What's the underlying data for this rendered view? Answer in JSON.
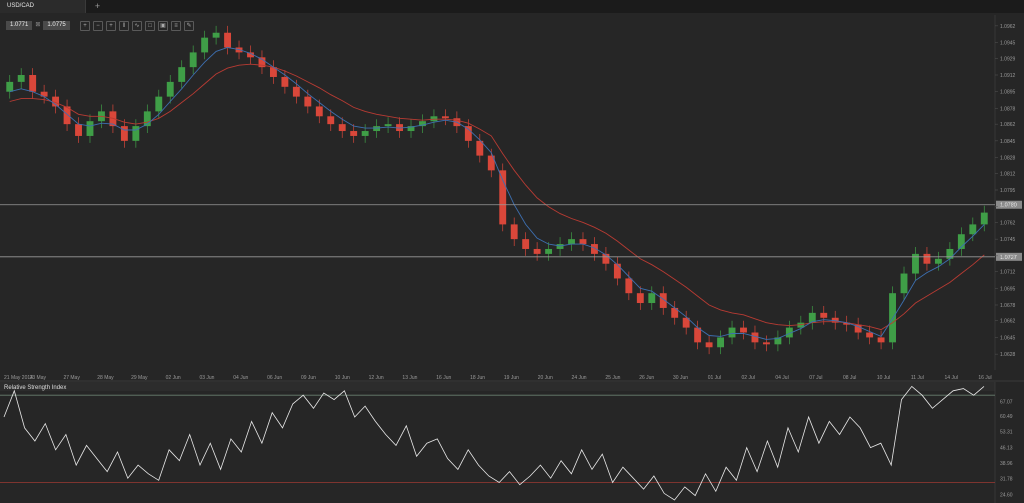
{
  "tab": {
    "symbol": "USD/CAD",
    "add_label": "+"
  },
  "quote": {
    "bid": "1.0771",
    "separator": "⊠",
    "ask": "1.0775"
  },
  "toolbar": {
    "icons": [
      "zoom-in-icon",
      "zoom-out-icon",
      "crosshair-icon",
      "candles-icon",
      "indicators-icon",
      "objects-icon",
      "screenshot-icon",
      "settings-icon",
      "draw-icon"
    ]
  },
  "colors": {
    "background": "#262626",
    "bull": "#3f9e47",
    "bear": "#d9473a",
    "ma_fast": "#3d6fb0",
    "ma_slow": "#b83b33",
    "hline": "#9a9a9a",
    "rsi_line": "#e8e8e8",
    "rsi_upper": "#6a7f70",
    "rsi_lower": "#9d3a33"
  },
  "chart_data": [
    {
      "type": "candlestick",
      "title": "USD/CAD",
      "ylim": [
        1.062,
        1.097
      ],
      "y_ticks": [
        "1.0962",
        "1.0945",
        "1.0929",
        "1.0912",
        "1.0895",
        "1.0878",
        "1.0862",
        "1.0845",
        "1.0828",
        "1.0812",
        "1.0795",
        "1.0778",
        "1.0762",
        "1.0745",
        "1.0728",
        "1.0712",
        "1.0695",
        "1.0678",
        "1.0662",
        "1.0645",
        "1.0628"
      ],
      "x_labels": [
        "21 May 2014",
        "23 May",
        "27 May",
        "28 May",
        "29 May",
        "02 Jun",
        "03 Jun",
        "04 Jun",
        "06 Jun",
        "09 Jun",
        "10 Jun",
        "12 Jun",
        "13 Jun",
        "16 Jun",
        "18 Jun",
        "19 Jun",
        "20 Jun",
        "24 Jun",
        "25 Jun",
        "26 Jun",
        "30 Jun",
        "01 Jul",
        "02 Jul",
        "04 Jul",
        "07 Jul",
        "08 Jul",
        "10 Jul",
        "11 Jul",
        "14 Jul",
        "16 Jul"
      ],
      "horizontal_lines": [
        {
          "label": "1.0780",
          "value": 1.078
        },
        {
          "label": "1.0727",
          "value": 1.0727
        }
      ],
      "close_path": [
        1.0905,
        1.0912,
        1.0895,
        1.089,
        1.088,
        1.0862,
        1.085,
        1.0865,
        1.0875,
        1.086,
        1.0845,
        1.086,
        1.0875,
        1.089,
        1.0905,
        1.092,
        1.0935,
        1.095,
        1.0955,
        1.094,
        1.0935,
        1.093,
        1.092,
        1.091,
        1.09,
        1.089,
        1.088,
        1.087,
        1.0862,
        1.0855,
        1.085,
        1.0855,
        1.086,
        1.0862,
        1.0855,
        1.086,
        1.0865,
        1.087,
        1.0868,
        1.086,
        1.0845,
        1.083,
        1.0815,
        1.076,
        1.0745,
        1.0735,
        1.073,
        1.0735,
        1.074,
        1.0745,
        1.074,
        1.073,
        1.072,
        1.0705,
        1.069,
        1.068,
        1.069,
        1.0675,
        1.0665,
        1.0655,
        1.064,
        1.0635,
        1.0645,
        1.0655,
        1.065,
        1.064,
        1.0638,
        1.0645,
        1.0655,
        1.066,
        1.067,
        1.0665,
        1.066,
        1.0658,
        1.065,
        1.0645,
        1.064,
        1.069,
        1.071,
        1.073,
        1.072,
        1.0725,
        1.0735,
        1.075,
        1.076,
        1.0772
      ],
      "ma_fast": [
        1.0895,
        1.0898,
        1.0895,
        1.089,
        1.0882,
        1.0872,
        1.0862,
        1.086,
        1.0863,
        1.0862,
        1.0856,
        1.0856,
        1.0862,
        1.0872,
        1.0885,
        1.0898,
        1.0912,
        1.0925,
        1.0936,
        1.094,
        1.0938,
        1.0934,
        1.0928,
        1.092,
        1.0912,
        1.0903,
        1.0893,
        1.0884,
        1.0875,
        1.0867,
        1.086,
        1.0858,
        1.0858,
        1.0859,
        1.0858,
        1.0859,
        1.0861,
        1.0864,
        1.0866,
        1.0864,
        1.0857,
        1.0846,
        1.0833,
        1.0805,
        1.078,
        1.076,
        1.0746,
        1.074,
        1.0738,
        1.074,
        1.074,
        1.0736,
        1.0729,
        1.0719,
        1.0707,
        1.0695,
        1.0692,
        1.0684,
        1.0675,
        1.0666,
        1.0655,
        1.0647,
        1.0646,
        1.0649,
        1.0649,
        1.0646,
        1.0643,
        1.0644,
        1.0649,
        1.0654,
        1.0661,
        1.0663,
        1.0662,
        1.066,
        1.0656,
        1.0651,
        1.0646,
        1.0664,
        1.0683,
        1.0703,
        1.0711,
        1.0717,
        1.0725,
        1.0737,
        1.0748,
        1.076
      ],
      "ma_slow": [
        1.0885,
        1.0888,
        1.0888,
        1.0887,
        1.0884,
        1.0879,
        1.0872,
        1.087,
        1.087,
        1.0868,
        1.0864,
        1.0862,
        1.0864,
        1.0868,
        1.0875,
        1.0884,
        1.0893,
        1.0903,
        1.0913,
        1.0919,
        1.0922,
        1.0923,
        1.0922,
        1.092,
        1.0916,
        1.0911,
        1.0905,
        1.0899,
        1.0892,
        1.0886,
        1.0879,
        1.0875,
        1.0872,
        1.087,
        1.0868,
        1.0867,
        1.0866,
        1.0867,
        1.0867,
        1.0866,
        1.0863,
        1.0857,
        1.085,
        1.0832,
        1.0815,
        1.08,
        1.0787,
        1.0778,
        1.0771,
        1.0766,
        1.0762,
        1.0757,
        1.0751,
        1.0743,
        1.0734,
        1.0725,
        1.0719,
        1.0712,
        1.0704,
        1.0696,
        1.0687,
        1.0678,
        1.0673,
        1.067,
        1.0668,
        1.0664,
        1.066,
        1.0658,
        1.0657,
        1.0658,
        1.066,
        1.0661,
        1.0661,
        1.066,
        1.0658,
        1.0656,
        1.0653,
        1.066,
        1.0669,
        1.068,
        1.0687,
        1.0694,
        1.0701,
        1.071,
        1.0719,
        1.0729
      ]
    },
    {
      "type": "line",
      "title": "Relative Strength Index",
      "ylim": [
        22,
        71
      ],
      "y_ticks": [
        "67.07",
        "60.49",
        "53.31",
        "46.13",
        "38.96",
        "31.78",
        "24.60"
      ],
      "levels": [
        70,
        30
      ],
      "values": [
        60,
        72,
        55,
        49,
        57,
        45,
        52,
        38,
        47,
        41,
        35,
        44,
        32,
        38,
        34,
        31,
        45,
        40,
        52,
        38,
        48,
        36,
        50,
        44,
        58,
        48,
        62,
        55,
        66,
        70,
        64,
        71,
        68,
        72,
        60,
        65,
        58,
        52,
        47,
        56,
        42,
        48,
        50,
        41,
        36,
        45,
        38,
        33,
        30,
        35,
        29,
        33,
        38,
        32,
        40,
        34,
        45,
        36,
        43,
        30,
        37,
        32,
        27,
        33,
        25,
        22,
        28,
        24,
        34,
        26,
        37,
        31,
        46,
        35,
        49,
        37,
        55,
        44,
        60,
        48,
        58,
        52,
        60,
        55,
        46,
        48,
        38,
        68,
        74,
        70,
        64,
        68,
        72,
        73,
        70,
        74
      ]
    }
  ]
}
